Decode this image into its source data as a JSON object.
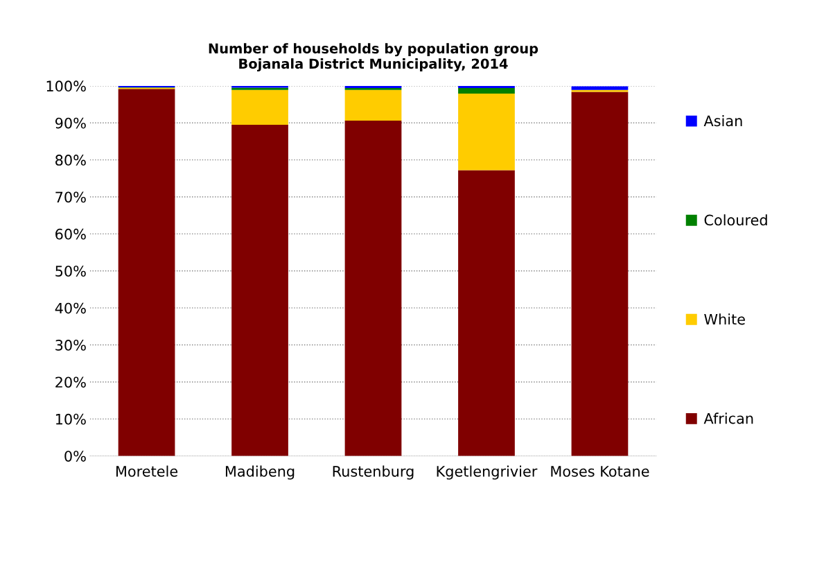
{
  "chart_data": {
    "type": "bar",
    "stacked": true,
    "title": "Number of households by population group\nBojanala District Municipality, 2014",
    "categories": [
      "Moretele",
      "Madibeng",
      "Rustenburg",
      "Kgetlengrivier",
      "Moses Kotane"
    ],
    "series": [
      {
        "name": "African",
        "color": "#800000",
        "values": [
          99.2,
          89.5,
          90.6,
          77.2,
          98.4
        ]
      },
      {
        "name": "White",
        "color": "#ffcc00",
        "values": [
          0.3,
          9.4,
          8.3,
          20.7,
          0.5
        ]
      },
      {
        "name": "Coloured",
        "color": "#008000",
        "values": [
          0.1,
          0.6,
          0.5,
          1.5,
          null
        ]
      },
      {
        "name": "Asian",
        "color": "#0000ff",
        "values": [
          0.4,
          0.5,
          0.6,
          0.6,
          1.0
        ]
      }
    ],
    "ylim": [
      0,
      100
    ],
    "yticks": [
      {
        "value": 0,
        "label": "0%"
      },
      {
        "value": 10,
        "label": "10%"
      },
      {
        "value": 20,
        "label": "20%"
      },
      {
        "value": 30,
        "label": "30%"
      },
      {
        "value": 40,
        "label": "40%"
      },
      {
        "value": 50,
        "label": "50%"
      },
      {
        "value": 60,
        "label": "60%"
      },
      {
        "value": 70,
        "label": "70%"
      },
      {
        "value": 80,
        "label": "80%"
      },
      {
        "value": 90,
        "label": "90%"
      },
      {
        "value": 100,
        "label": "100%"
      }
    ],
    "grid": "y",
    "legend": "right"
  }
}
